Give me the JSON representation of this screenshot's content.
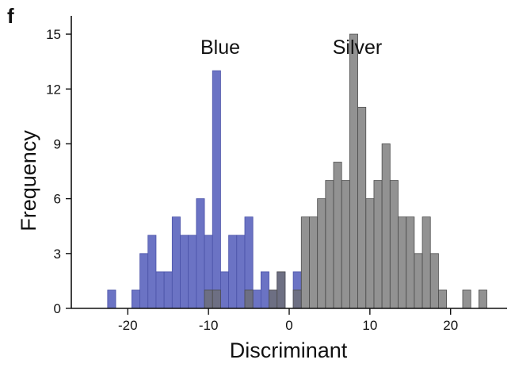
{
  "panel_label": "f",
  "chart_data": {
    "type": "bar",
    "xlabel": "Discriminant",
    "ylabel": "Frequency",
    "xlim": [
      -27,
      27
    ],
    "ylim": [
      0,
      16
    ],
    "xticks": [
      -20,
      -10,
      0,
      10,
      20
    ],
    "yticks": [
      0,
      3,
      6,
      9,
      12,
      15
    ],
    "bin_width": 1,
    "annotations": [
      "Blue",
      "Silver"
    ],
    "series": [
      {
        "name": "Blue",
        "color": "#6b73c4",
        "edge_color": "#4a52a8",
        "bins": [
          {
            "x": -22,
            "y": 1
          },
          {
            "x": -19,
            "y": 1
          },
          {
            "x": -18,
            "y": 3
          },
          {
            "x": -17,
            "y": 4
          },
          {
            "x": -16,
            "y": 2
          },
          {
            "x": -15,
            "y": 2
          },
          {
            "x": -14,
            "y": 5
          },
          {
            "x": -13,
            "y": 4
          },
          {
            "x": -12,
            "y": 4
          },
          {
            "x": -11,
            "y": 6
          },
          {
            "x": -10,
            "y": 4
          },
          {
            "x": -9,
            "y": 13
          },
          {
            "x": -8,
            "y": 2
          },
          {
            "x": -7,
            "y": 4
          },
          {
            "x": -6,
            "y": 4
          },
          {
            "x": -5,
            "y": 5
          },
          {
            "x": -4,
            "y": 1
          },
          {
            "x": -3,
            "y": 2
          },
          {
            "x": -2,
            "y": 1
          },
          {
            "x": -1,
            "y": 2
          },
          {
            "x": 1,
            "y": 2
          }
        ]
      },
      {
        "name": "Silver",
        "color": "#6e6e6e",
        "edge_color": "#4e4e4e",
        "bins": [
          {
            "x": -10,
            "y": 1
          },
          {
            "x": -9,
            "y": 1
          },
          {
            "x": -5,
            "y": 1
          },
          {
            "x": -2,
            "y": 1
          },
          {
            "x": -1,
            "y": 2
          },
          {
            "x": 1,
            "y": 1
          },
          {
            "x": 2,
            "y": 5
          },
          {
            "x": 3,
            "y": 5
          },
          {
            "x": 4,
            "y": 6
          },
          {
            "x": 5,
            "y": 7
          },
          {
            "x": 6,
            "y": 8
          },
          {
            "x": 7,
            "y": 7
          },
          {
            "x": 8,
            "y": 15
          },
          {
            "x": 9,
            "y": 11
          },
          {
            "x": 10,
            "y": 6
          },
          {
            "x": 11,
            "y": 7
          },
          {
            "x": 12,
            "y": 9
          },
          {
            "x": 13,
            "y": 7
          },
          {
            "x": 14,
            "y": 5
          },
          {
            "x": 15,
            "y": 5
          },
          {
            "x": 16,
            "y": 3
          },
          {
            "x": 17,
            "y": 5
          },
          {
            "x": 18,
            "y": 3
          },
          {
            "x": 19,
            "y": 1
          },
          {
            "x": 22,
            "y": 1
          },
          {
            "x": 24,
            "y": 1
          }
        ]
      }
    ]
  }
}
